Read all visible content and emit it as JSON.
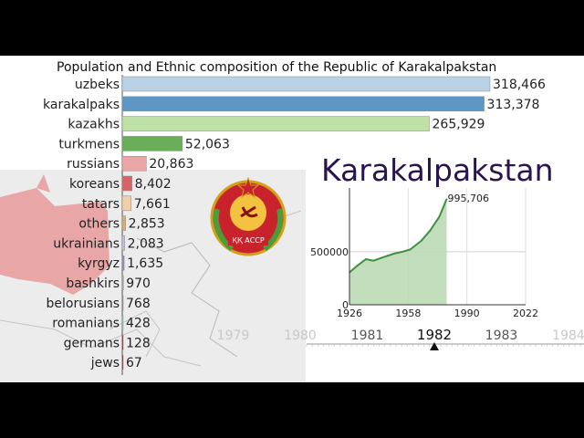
{
  "chart_data": [
    {
      "type": "bar",
      "title": "Population and Ethnic composition of the Republic of Karakalpakstan",
      "categories": [
        "uzbeks",
        "karakalpaks",
        "kazakhs",
        "turkmens",
        "russians",
        "koreans",
        "tatars",
        "others",
        "ukrainians",
        "kyrgyz",
        "bashkirs",
        "belorusians",
        "romanians",
        "germans",
        "jews"
      ],
      "values": [
        318466,
        313378,
        265929,
        52063,
        20863,
        8402,
        7661,
        2853,
        2083,
        1635,
        970,
        768,
        428,
        128,
        67
      ],
      "value_labels": [
        "318,466",
        "313,378",
        "265,929",
        "52,063",
        "20,863",
        "8,402",
        "7,661",
        "2,853",
        "2,083",
        "1,635",
        "970",
        "768",
        "428",
        "128",
        "67"
      ],
      "colors": [
        "#b9d2e6",
        "#5e97c4",
        "#bfe0a6",
        "#6aae5a",
        "#eaa6a6",
        "#d76464",
        "#f0cfa6",
        "#d2b07a",
        "#c8bfe0",
        "#9d86c2",
        "#a9a9a9",
        "#8c8c8c",
        "#a6d7e0",
        "#7a2020",
        "#7a2020"
      ]
    },
    {
      "type": "area",
      "title": "Karakalpakstan",
      "x": [
        1926,
        1930,
        1935,
        1939,
        1944,
        1950,
        1955,
        1959,
        1965,
        1970,
        1975,
        1979
      ],
      "y": [
        305000,
        365000,
        430000,
        415000,
        445000,
        480000,
        500000,
        520000,
        600000,
        700000,
        830000,
        995706
      ],
      "end_label": "995,706",
      "xlim": [
        1926,
        2022
      ],
      "ylim": [
        0,
        1100000
      ],
      "x_ticks": [
        "1926",
        "1958",
        "1990",
        "2022"
      ],
      "y_ticks": [
        "0",
        "500000"
      ],
      "line_color": "#3f8f3f",
      "fill_color": "#b8d8b0"
    }
  ],
  "timeline": {
    "current_year": "1982",
    "years": [
      "1979",
      "1980",
      "1981",
      "1982",
      "1983",
      "1984"
    ]
  },
  "emblem": {
    "text": "ҚҚ АССР"
  }
}
